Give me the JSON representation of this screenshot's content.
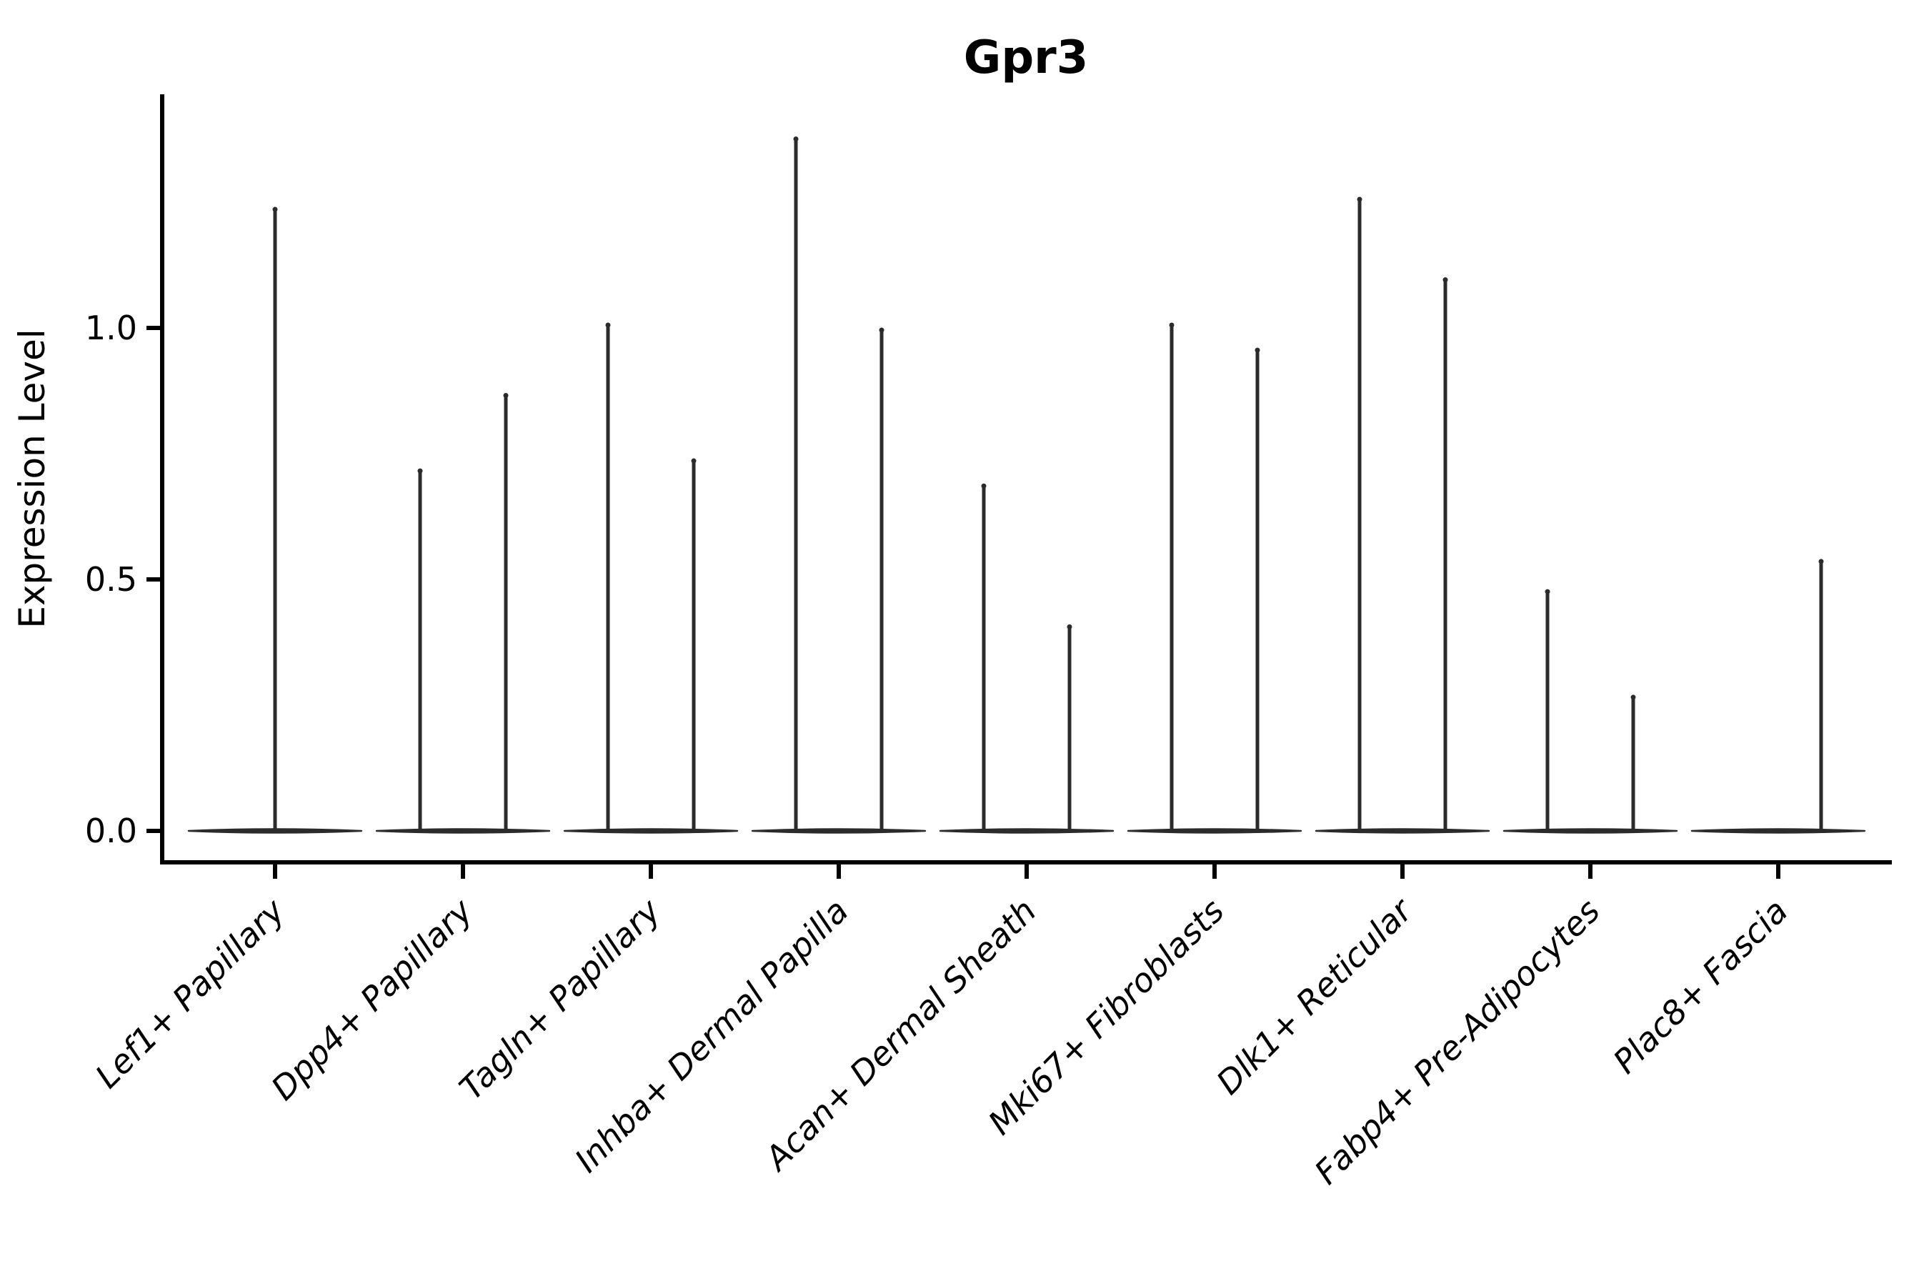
{
  "title": "Gpr3",
  "y_axis": {
    "label": "Expression Level",
    "tick_labels": [
      "0.0",
      "0.5",
      "1.0"
    ],
    "tick_values": [
      0.0,
      0.5,
      1.0
    ]
  },
  "x_axis": {
    "categories": [
      "Lef1+ Papillary",
      "Dpp4+ Papillary",
      "Tagln+ Papillary",
      "Inhba+ Dermal Papilla",
      "Acan+ Dermal Sheath",
      "Mki67+ Fibroblasts",
      "Dlk1+ Reticular",
      "Fabp4+ Pre-Adipocytes",
      "Plac8+ Fascia"
    ]
  },
  "chart_data": {
    "type": "violin",
    "title": "Gpr3",
    "xlabel": "",
    "ylabel": "Expression Level",
    "ylim": [
      0.0,
      1.46
    ],
    "y_ticks": [
      0.0,
      0.5,
      1.0
    ],
    "grid": false,
    "legend": "none",
    "baseline_value": 0.0,
    "categories": [
      "Lef1+ Papillary",
      "Dpp4+ Papillary",
      "Tagln+ Papillary",
      "Inhba+ Dermal Papilla",
      "Acan+ Dermal Sheath",
      "Mki67+ Fibroblasts",
      "Dlk1+ Reticular",
      "Fabp4+ Pre-Adipocytes",
      "Plac8+ Fascia"
    ],
    "violins": [
      {
        "category": "Lef1+ Papillary",
        "spikes": [
          {
            "position": "center",
            "max_expression": 1.24
          }
        ]
      },
      {
        "category": "Dpp4+ Papillary",
        "spikes": [
          {
            "position": "left",
            "max_expression": 0.72
          },
          {
            "position": "right",
            "max_expression": 0.87
          }
        ]
      },
      {
        "category": "Tagln+ Papillary",
        "spikes": [
          {
            "position": "left",
            "max_expression": 1.01
          },
          {
            "position": "right",
            "max_expression": 0.74
          }
        ]
      },
      {
        "category": "Inhba+ Dermal Papilla",
        "spikes": [
          {
            "position": "left",
            "max_expression": 1.38
          },
          {
            "position": "right",
            "max_expression": 1.0
          }
        ]
      },
      {
        "category": "Acan+ Dermal Sheath",
        "spikes": [
          {
            "position": "left",
            "max_expression": 0.69
          },
          {
            "position": "right",
            "max_expression": 0.41
          }
        ]
      },
      {
        "category": "Mki67+ Fibroblasts",
        "spikes": [
          {
            "position": "left",
            "max_expression": 1.01
          },
          {
            "position": "right",
            "max_expression": 0.96
          }
        ]
      },
      {
        "category": "Dlk1+ Reticular",
        "spikes": [
          {
            "position": "left",
            "max_expression": 1.26
          },
          {
            "position": "right",
            "max_expression": 1.1
          }
        ]
      },
      {
        "category": "Fabp4+ Pre-Adipocytes",
        "spikes": [
          {
            "position": "left",
            "max_expression": 0.48
          },
          {
            "position": "right",
            "max_expression": 0.27
          }
        ]
      },
      {
        "category": "Plac8+ Fascia",
        "spikes": [
          {
            "position": "right",
            "max_expression": 0.54
          }
        ]
      }
    ]
  },
  "colors": {
    "background": "#ffffff",
    "axis": "#000000",
    "text": "#000000",
    "violin_stroke": "#2b2b2b"
  }
}
